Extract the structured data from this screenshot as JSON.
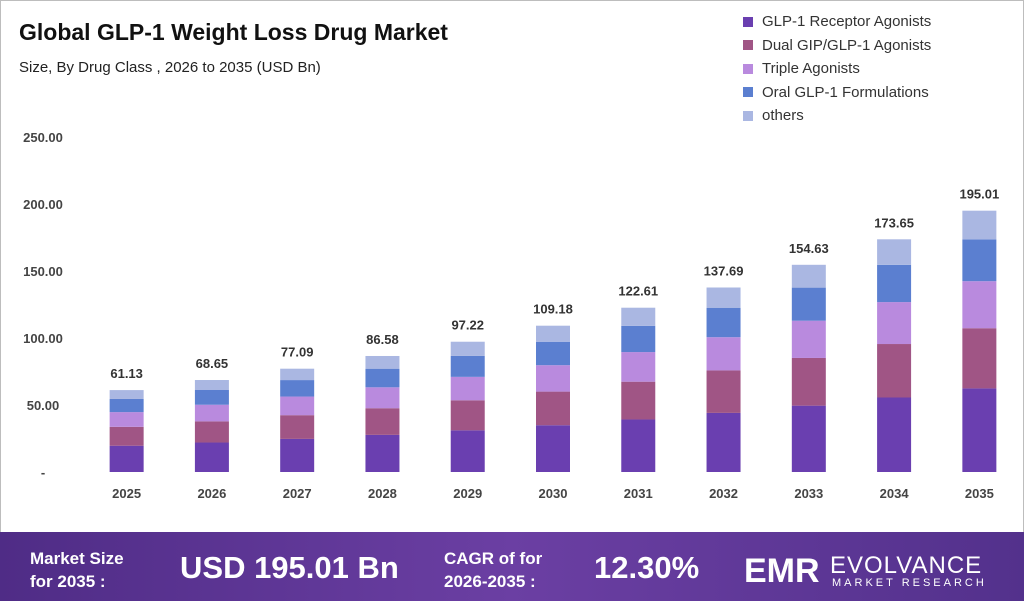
{
  "title": "Global GLP-1 Weight Loss Drug Market",
  "subtitle": "Size, By Drug Class , 2026 to 2035 (USD Bn)",
  "legend": [
    {
      "label": "GLP-1 Receptor Agonists",
      "color": "#6a3fb0"
    },
    {
      "label": "Dual GIP/GLP-1 Agonists",
      "color": "#a05585"
    },
    {
      "label": "Triple Agonists",
      "color": "#b98ade"
    },
    {
      "label": "Oral GLP-1 Formulations",
      "color": "#5b7fd0"
    },
    {
      "label": "others",
      "color": "#aab7e2"
    }
  ],
  "chart_data": {
    "type": "bar",
    "stacked": true,
    "categories": [
      "2025",
      "2026",
      "2027",
      "2028",
      "2029",
      "2030",
      "2031",
      "2032",
      "2033",
      "2034",
      "2035"
    ],
    "totals": [
      61.13,
      68.65,
      77.09,
      86.58,
      97.22,
      109.18,
      122.61,
      137.69,
      154.63,
      173.65,
      195.01
    ],
    "total_labels": [
      "61.13",
      "68.65",
      "77.09",
      "86.58",
      "97.22",
      "109.18",
      "122.61",
      "137.69",
      "154.63",
      "173.65",
      "195.01"
    ],
    "series": [
      {
        "name": "GLP-1 Receptor Agonists",
        "color": "#6a3fb0",
        "values": [
          19.6,
          22.0,
          24.7,
          27.7,
          31.1,
          34.9,
          39.2,
          44.1,
          49.5,
          55.6,
          62.4
        ]
      },
      {
        "name": "Dual GIP/GLP-1 Agonists",
        "color": "#a05585",
        "values": [
          14.1,
          15.8,
          17.7,
          19.9,
          22.4,
          25.1,
          28.2,
          31.7,
          35.6,
          39.9,
          44.9
        ]
      },
      {
        "name": "Triple Agonists",
        "color": "#b98ade",
        "values": [
          11.0,
          12.4,
          13.9,
          15.6,
          17.5,
          19.7,
          22.1,
          24.8,
          27.8,
          31.3,
          35.1
        ]
      },
      {
        "name": "Oral GLP-1 Formulations",
        "color": "#5b7fd0",
        "values": [
          9.8,
          11.0,
          12.3,
          13.9,
          15.6,
          17.5,
          19.6,
          22.0,
          24.7,
          27.8,
          31.2
        ]
      },
      {
        "name": "others",
        "color": "#aab7e2",
        "values": [
          6.63,
          7.45,
          8.49,
          9.48,
          10.62,
          11.98,
          13.51,
          15.09,
          17.03,
          19.05,
          21.41
        ]
      }
    ],
    "ylim": [
      0,
      250
    ],
    "yticks": [
      0,
      50,
      100,
      150,
      200,
      250
    ],
    "ytick_labels": [
      "-",
      "50.00",
      "100.00",
      "150.00",
      "200.00",
      "250.00"
    ],
    "grid": false,
    "legend_position": "top-right"
  },
  "footer": {
    "market_label_line1": "Market Size",
    "market_label_line2": "for 2035 :",
    "market_value": "USD 195.01 Bn",
    "cagr_label_line1": "CAGR of for",
    "cagr_label_line2": "2026-2035 :",
    "cagr_value": "12.30%",
    "logo_mark": "EMR",
    "logo_name": "EVOLVANCE",
    "logo_sub": "MARKET RESEARCH"
  }
}
